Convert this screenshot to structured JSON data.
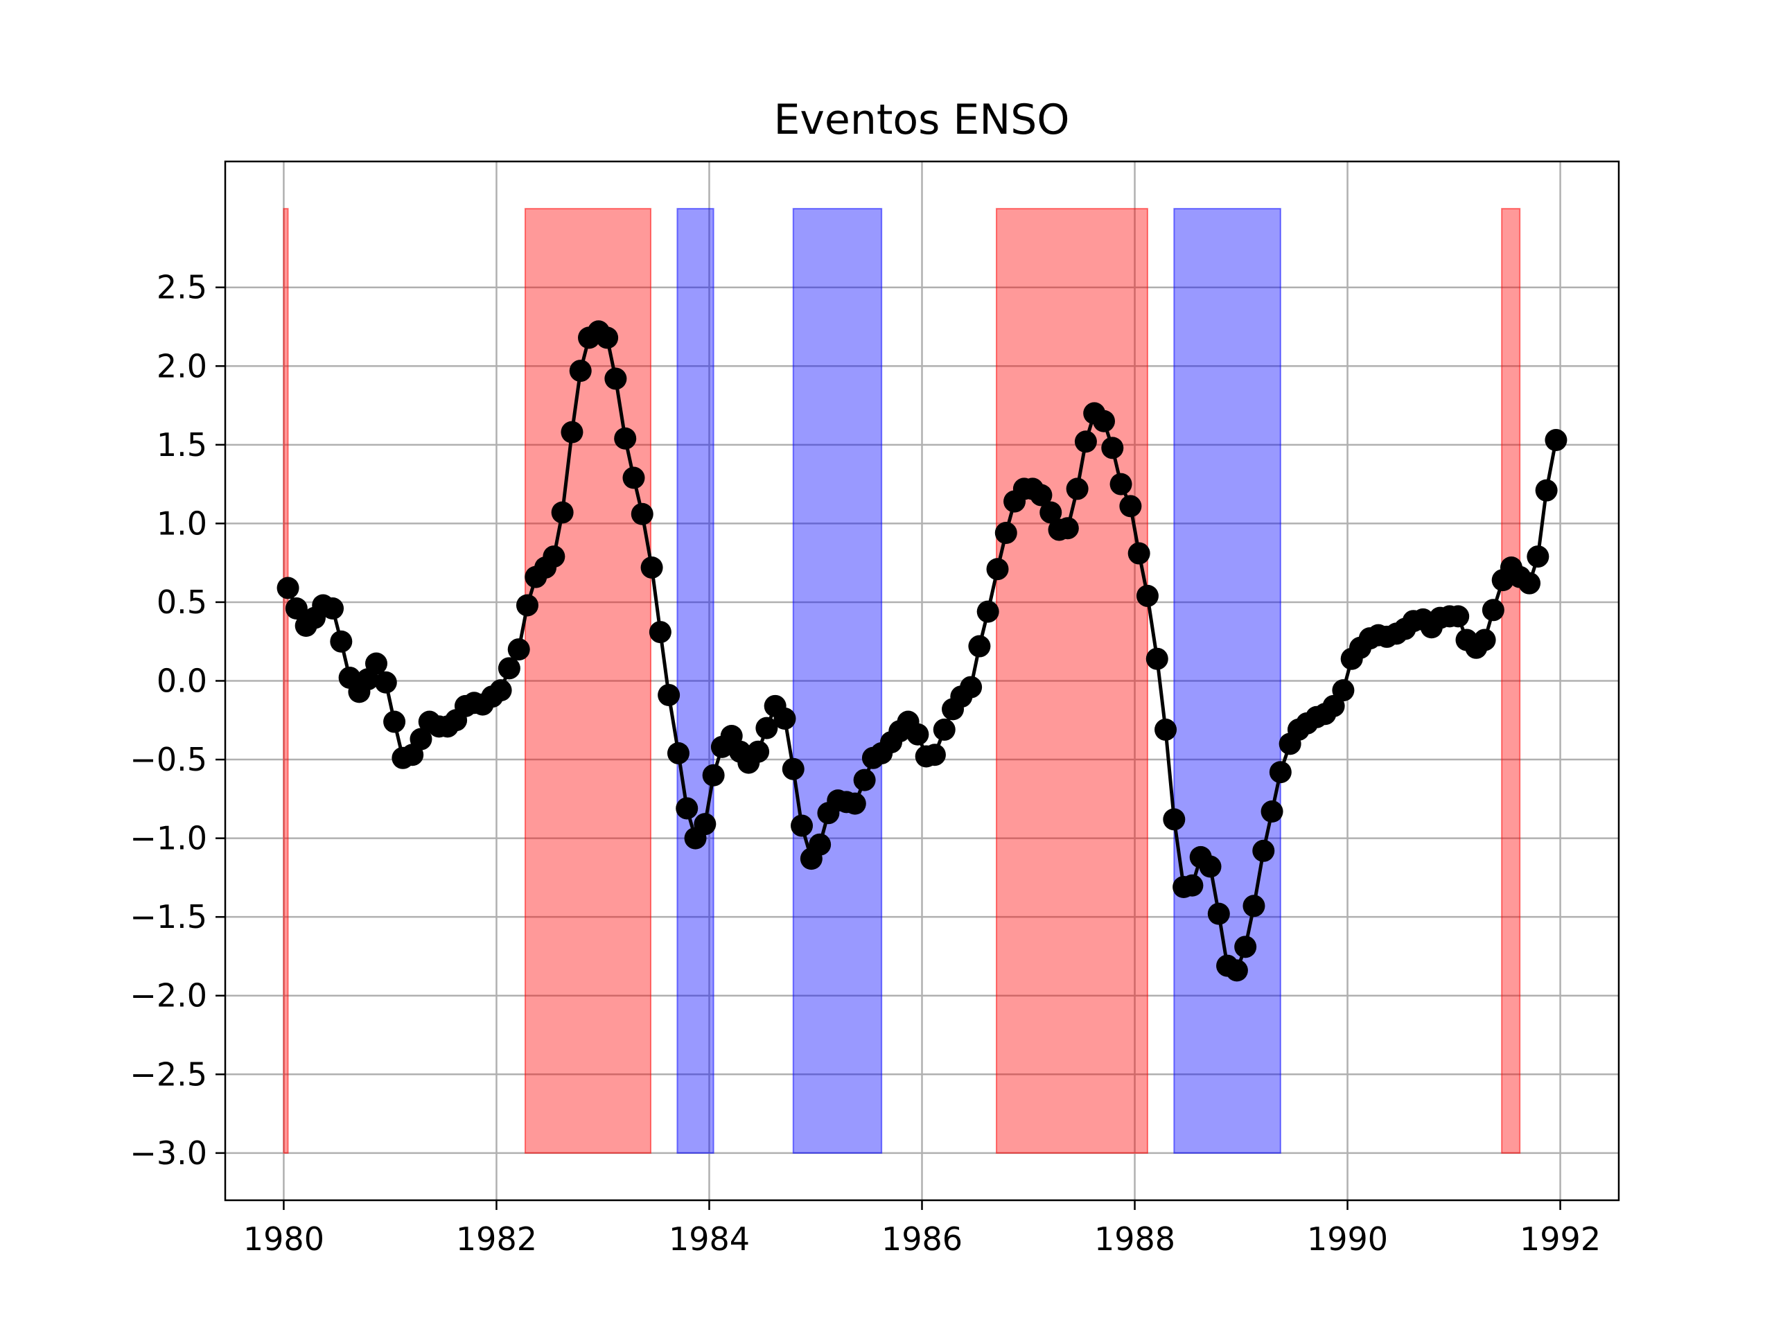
{
  "chart_data": {
    "type": "line",
    "title": "Eventos ENSO",
    "xlabel": "",
    "ylabel": "",
    "xlim": [
      1979.45,
      1992.55
    ],
    "ylim": [
      -3.3,
      3.3
    ],
    "grid": true,
    "x_ticks": [
      {
        "value": 1980,
        "label": "1980"
      },
      {
        "value": 1982,
        "label": "1982"
      },
      {
        "value": 1984,
        "label": "1984"
      },
      {
        "value": 1986,
        "label": "1986"
      },
      {
        "value": 1988,
        "label": "1988"
      },
      {
        "value": 1990,
        "label": "1990"
      },
      {
        "value": 1992,
        "label": "1992"
      }
    ],
    "y_ticks": [
      {
        "value": -3.0,
        "label": "−3.0"
      },
      {
        "value": -2.5,
        "label": "−2.5"
      },
      {
        "value": -2.0,
        "label": "−2.0"
      },
      {
        "value": -1.5,
        "label": "−1.5"
      },
      {
        "value": -1.0,
        "label": "−1.0"
      },
      {
        "value": -0.5,
        "label": "−0.5"
      },
      {
        "value": 0.0,
        "label": "0.0"
      },
      {
        "value": 0.5,
        "label": "0.5"
      },
      {
        "value": 1.0,
        "label": "1.0"
      },
      {
        "value": 1.5,
        "label": "1.5"
      },
      {
        "value": 2.0,
        "label": "2.0"
      },
      {
        "value": 2.5,
        "label": "2.5"
      }
    ],
    "bands": [
      {
        "phase": "warm",
        "x0": 1980.0,
        "x1": 1980.04,
        "y0": -3.0,
        "y1": 3.0,
        "color": "#ff0000"
      },
      {
        "phase": "warm",
        "x0": 1982.27,
        "x1": 1983.45,
        "y0": -3.0,
        "y1": 3.0,
        "color": "#ff0000"
      },
      {
        "phase": "cold",
        "x0": 1983.7,
        "x1": 1984.04,
        "y0": -3.0,
        "y1": 3.0,
        "color": "#0000ff"
      },
      {
        "phase": "cold",
        "x0": 1984.79,
        "x1": 1985.62,
        "y0": -3.0,
        "y1": 3.0,
        "color": "#0000ff"
      },
      {
        "phase": "warm",
        "x0": 1986.7,
        "x1": 1988.12,
        "y0": -3.0,
        "y1": 3.0,
        "color": "#ff0000"
      },
      {
        "phase": "cold",
        "x0": 1988.37,
        "x1": 1989.37,
        "y0": -3.0,
        "y1": 3.0,
        "color": "#0000ff"
      },
      {
        "phase": "warm",
        "x0": 1991.45,
        "x1": 1991.62,
        "y0": -3.0,
        "y1": 3.0,
        "color": "#ff0000"
      }
    ],
    "series": [
      {
        "color": "#000000",
        "marker": "circle",
        "x": [
          1980.04,
          1980.12,
          1980.21,
          1980.29,
          1980.37,
          1980.46,
          1980.54,
          1980.62,
          1980.71,
          1980.79,
          1980.87,
          1980.96,
          1981.04,
          1981.12,
          1981.21,
          1981.29,
          1981.37,
          1981.46,
          1981.54,
          1981.62,
          1981.71,
          1981.79,
          1981.87,
          1981.96,
          1982.04,
          1982.12,
          1982.21,
          1982.29,
          1982.37,
          1982.46,
          1982.54,
          1982.62,
          1982.71,
          1982.79,
          1982.87,
          1982.96,
          1983.04,
          1983.12,
          1983.21,
          1983.29,
          1983.37,
          1983.46,
          1983.54,
          1983.62,
          1983.71,
          1983.79,
          1983.87,
          1983.96,
          1984.04,
          1984.12,
          1984.21,
          1984.29,
          1984.37,
          1984.46,
          1984.54,
          1984.62,
          1984.71,
          1984.79,
          1984.87,
          1984.96,
          1985.04,
          1985.12,
          1985.21,
          1985.29,
          1985.37,
          1985.46,
          1985.54,
          1985.62,
          1985.71,
          1985.79,
          1985.87,
          1985.96,
          1986.04,
          1986.12,
          1986.21,
          1986.29,
          1986.37,
          1986.46,
          1986.54,
          1986.62,
          1986.71,
          1986.79,
          1986.87,
          1986.96,
          1987.04,
          1987.12,
          1987.21,
          1987.29,
          1987.37,
          1987.46,
          1987.54,
          1987.62,
          1987.71,
          1987.79,
          1987.87,
          1987.96,
          1988.04,
          1988.12,
          1988.21,
          1988.29,
          1988.37,
          1988.46,
          1988.54,
          1988.62,
          1988.71,
          1988.79,
          1988.87,
          1988.96,
          1989.04,
          1989.12,
          1989.21,
          1989.29,
          1989.37,
          1989.46,
          1989.54,
          1989.62,
          1989.71,
          1989.79,
          1989.87,
          1989.96,
          1990.04,
          1990.12,
          1990.21,
          1990.29,
          1990.37,
          1990.46,
          1990.54,
          1990.62,
          1990.71,
          1990.79,
          1990.87,
          1990.96,
          1991.04,
          1991.12,
          1991.21,
          1991.29,
          1991.37,
          1991.46,
          1991.54,
          1991.62,
          1991.71,
          1991.79,
          1991.87,
          1991.96
        ],
        "y": [
          0.59,
          0.46,
          0.35,
          0.4,
          0.48,
          0.46,
          0.25,
          0.02,
          -0.07,
          0.01,
          0.11,
          -0.01,
          -0.26,
          -0.49,
          -0.47,
          -0.37,
          -0.26,
          -0.29,
          -0.29,
          -0.25,
          -0.16,
          -0.14,
          -0.15,
          -0.1,
          -0.06,
          0.08,
          0.2,
          0.48,
          0.66,
          0.72,
          0.79,
          1.07,
          1.58,
          1.97,
          2.18,
          2.22,
          2.18,
          1.92,
          1.54,
          1.29,
          1.06,
          0.72,
          0.31,
          -0.09,
          -0.46,
          -0.81,
          -1.0,
          -0.91,
          -0.6,
          -0.42,
          -0.35,
          -0.45,
          -0.52,
          -0.45,
          -0.3,
          -0.16,
          -0.24,
          -0.56,
          -0.92,
          -1.13,
          -1.04,
          -0.84,
          -0.76,
          -0.77,
          -0.78,
          -0.63,
          -0.49,
          -0.46,
          -0.39,
          -0.32,
          -0.26,
          -0.34,
          -0.48,
          -0.47,
          -0.31,
          -0.18,
          -0.1,
          -0.04,
          0.22,
          0.44,
          0.71,
          0.94,
          1.14,
          1.22,
          1.22,
          1.18,
          1.07,
          0.96,
          0.97,
          1.22,
          1.52,
          1.7,
          1.65,
          1.48,
          1.25,
          1.11,
          0.81,
          0.54,
          0.14,
          -0.31,
          -0.88,
          -1.31,
          -1.3,
          -1.12,
          -1.18,
          -1.48,
          -1.81,
          -1.84,
          -1.69,
          -1.43,
          -1.08,
          -0.83,
          -0.58,
          -0.4,
          -0.31,
          -0.27,
          -0.23,
          -0.21,
          -0.16,
          -0.06,
          0.14,
          0.21,
          0.27,
          0.29,
          0.28,
          0.3,
          0.33,
          0.38,
          0.39,
          0.34,
          0.4,
          0.41,
          0.41,
          0.26,
          0.21,
          0.26,
          0.45,
          0.64,
          0.72,
          0.66,
          0.62,
          0.79,
          1.21,
          1.53
        ]
      }
    ]
  }
}
